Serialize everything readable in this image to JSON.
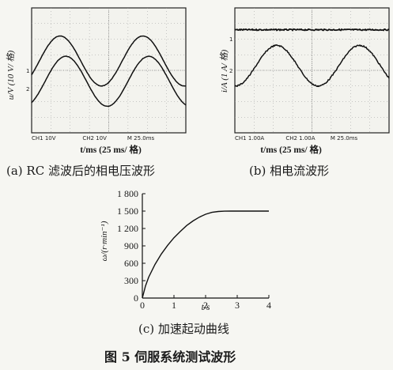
{
  "panel_a": {
    "ylabel": "u/V (10 V/ 格)",
    "xlabel": "t/ms (25 ms/ 格)",
    "ch1_label": "CH1  10V",
    "ch2_label": "CH2  10V",
    "time_label": "M  25.0ms",
    "marker1": "1",
    "marker2": "2",
    "caption": "(a) RC 滤波后的相电压波形"
  },
  "panel_b": {
    "ylabel": "i/A (1 A/ 格)",
    "xlabel": "t/ms (25 ms/ 格)",
    "ch1_label": "CH1  1.00A",
    "ch2_label": "CH2  1.00A",
    "time_label": "M  25.0ms",
    "marker1": "1",
    "marker2": "2",
    "caption": "(b) 相电流波形"
  },
  "panel_c": {
    "ylabel": "ω/(r·min⁻¹)",
    "xlabel": "t/s",
    "caption": "(c) 加速起动曲线"
  },
  "figure_title": "图 5   伺服系统测试波形",
  "chart_data": [
    {
      "type": "line",
      "panel": "a",
      "xlabel": "t/ms (25 ms/ 格)",
      "ylabel": "u/V (10 V/ 格)",
      "x_div": 8,
      "y_div": 8,
      "series": [
        {
          "channel": "CH1",
          "amplitude_div": 1.6,
          "offset_div": 0.6,
          "period_div": 4.3,
          "phase_div": 0.4
        },
        {
          "channel": "CH2",
          "amplitude_div": 1.6,
          "offset_div": -0.7,
          "period_div": 4.3,
          "phase_div": 0.7
        }
      ]
    },
    {
      "type": "line",
      "panel": "b",
      "xlabel": "t/ms (25 ms/ 格)",
      "ylabel": "i/A (1 A/ 格)",
      "x_div": 8,
      "y_div": 8,
      "series": [
        {
          "channel": "CH1",
          "constant_div": 2.6
        },
        {
          "channel": "CH2",
          "amplitude_div": 1.3,
          "offset_div": 0.3,
          "period_div": 4.3,
          "phase_div": 1.1
        }
      ]
    },
    {
      "type": "line",
      "panel": "c",
      "xlabel": "t/s",
      "ylabel": "ω/(r·min⁻¹)",
      "xlim": [
        0,
        4
      ],
      "ylim": [
        0,
        1800
      ],
      "xticks": [
        0,
        1,
        2,
        3,
        4
      ],
      "yticks": [
        0,
        300,
        600,
        900,
        1200,
        1500,
        1800
      ],
      "xtick_labels": [
        "0",
        "1",
        "2",
        "3",
        "4"
      ],
      "ytick_labels": [
        "0",
        "300",
        "600",
        "900",
        "1 200",
        "1 500",
        "1 800"
      ],
      "x": [
        0,
        0.1,
        0.2,
        0.4,
        0.6,
        0.8,
        1.0,
        1.2,
        1.4,
        1.6,
        1.8,
        2.0,
        2.2,
        2.4,
        2.6,
        2.8,
        3.0,
        3.5,
        4.0
      ],
      "y": [
        0,
        210,
        360,
        580,
        760,
        910,
        1040,
        1150,
        1250,
        1330,
        1395,
        1445,
        1478,
        1493,
        1499,
        1500,
        1500,
        1500,
        1500
      ]
    }
  ]
}
